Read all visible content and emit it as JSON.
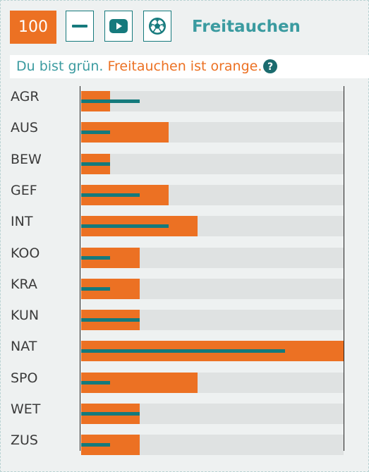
{
  "header": {
    "score": "100",
    "title": "Freitauchen",
    "buttons": [
      {
        "name": "minus-button",
        "icon": "minus-icon"
      },
      {
        "name": "video-button",
        "icon": "youtube-play-icon"
      },
      {
        "name": "sport-button",
        "icon": "soccer-ball-icon"
      }
    ]
  },
  "legend": {
    "green_text": "Du bist grün.",
    "orange_text": "Freitauchen ist orange.",
    "help_icon": "question-circle-icon"
  },
  "colors": {
    "accent": "#ec7123",
    "user": "#147a7c",
    "title": "#3b9ba0",
    "track": "#dfe2e2"
  },
  "chart_data": {
    "type": "bar",
    "categories": [
      "AGR",
      "AUS",
      "BEW",
      "GEF",
      "INT",
      "KOO",
      "KRA",
      "KUN",
      "NAT",
      "SPO",
      "WET",
      "ZUS"
    ],
    "series": [
      {
        "values": [
          1,
          3,
          1,
          3,
          4,
          2,
          2,
          2,
          9,
          4,
          2,
          2
        ]
      },
      {
        "values": [
          2,
          1,
          1,
          2,
          3,
          1,
          1,
          2,
          7,
          1,
          2,
          1
        ]
      }
    ],
    "xlim": [
      0,
      9
    ]
  }
}
